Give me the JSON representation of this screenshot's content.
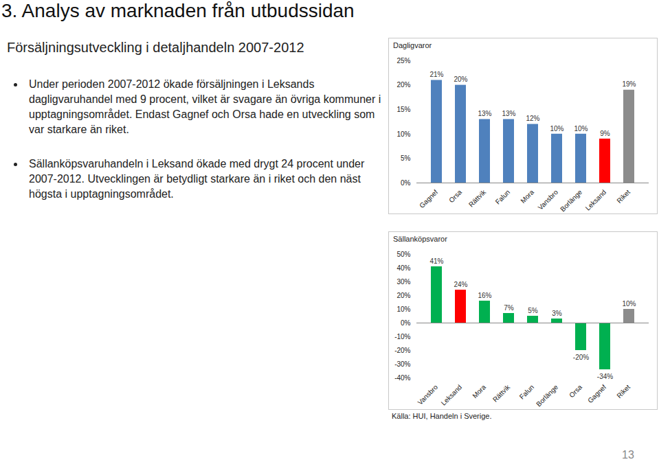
{
  "page": {
    "title": "3. Analys av marknaden från utbudssidan",
    "subtitle": "Försäljningsutveckling i detaljhandeln 2007-2012",
    "bullets": [
      "Under perioden 2007-2012 ökade försäljningen i Leksands dagligvaruhandel med 9 procent, vilket är svagare än övriga kommuner i upptagningsområdet. Endast Gagnef och Orsa hade en utveckling som var starkare än riket.",
      "Sällanköpsvaruhandeln i Leksand ökade med drygt 24 procent under 2007-2012. Utvecklingen är betydligt starkare än i riket och den näst högsta i upptagningsområdet."
    ],
    "source": "Källa: HUI, Handeln i Sverige.",
    "page_number": "13"
  },
  "chart_data": [
    {
      "type": "bar",
      "title": "Dagligvaror",
      "categories": [
        "Gagnef",
        "Orsa",
        "Rättvik",
        "Falun",
        "Mora",
        "Vansbro",
        "Borlänge",
        "Leksand",
        "Riket"
      ],
      "values": [
        21,
        20,
        13,
        13,
        12,
        10,
        10,
        9,
        19
      ],
      "value_labels": [
        "21%",
        "20%",
        "13%",
        "13%",
        "12%",
        "10%",
        "10%",
        "9%",
        "19%"
      ],
      "colors": [
        "#4f81bd",
        "#4f81bd",
        "#4f81bd",
        "#4f81bd",
        "#4f81bd",
        "#4f81bd",
        "#4f81bd",
        "#ff0000",
        "#8c8c8c"
      ],
      "ylim": [
        0,
        25
      ],
      "yticks": [
        {
          "value": 0,
          "label": "0%"
        },
        {
          "value": 5,
          "label": "5%"
        },
        {
          "value": 10,
          "label": "10%"
        },
        {
          "value": 15,
          "label": "15%"
        },
        {
          "value": 20,
          "label": "20%"
        },
        {
          "value": 25,
          "label": "25%"
        }
      ],
      "grid": false,
      "data_labels": true
    },
    {
      "type": "bar",
      "title": "Sällanköpsvaror",
      "categories": [
        "Vansbro",
        "Leksand",
        "Mora",
        "Rättvik",
        "Falun",
        "Borlänge",
        "Orsa",
        "Gagnef",
        "Riket"
      ],
      "values": [
        41,
        24,
        16,
        7,
        5,
        3,
        -20,
        -34,
        10
      ],
      "value_labels": [
        "41%",
        "24%",
        "16%",
        "7%",
        "5%",
        "3%",
        "-20%",
        "-34%",
        "10%"
      ],
      "colors": [
        "#00b050",
        "#ff0000",
        "#00b050",
        "#00b050",
        "#00b050",
        "#00b050",
        "#00b050",
        "#00b050",
        "#8c8c8c"
      ],
      "ylim": [
        -40,
        50
      ],
      "yticks": [
        {
          "value": -40,
          "label": "-40%"
        },
        {
          "value": -30,
          "label": "-30%"
        },
        {
          "value": -20,
          "label": "-20%"
        },
        {
          "value": -10,
          "label": "-10%"
        },
        {
          "value": 0,
          "label": "0%"
        },
        {
          "value": 10,
          "label": "10%"
        },
        {
          "value": 20,
          "label": "20%"
        },
        {
          "value": 30,
          "label": "30%"
        },
        {
          "value": 40,
          "label": "40%"
        },
        {
          "value": 50,
          "label": "50%"
        }
      ],
      "grid": false,
      "data_labels": true
    }
  ]
}
